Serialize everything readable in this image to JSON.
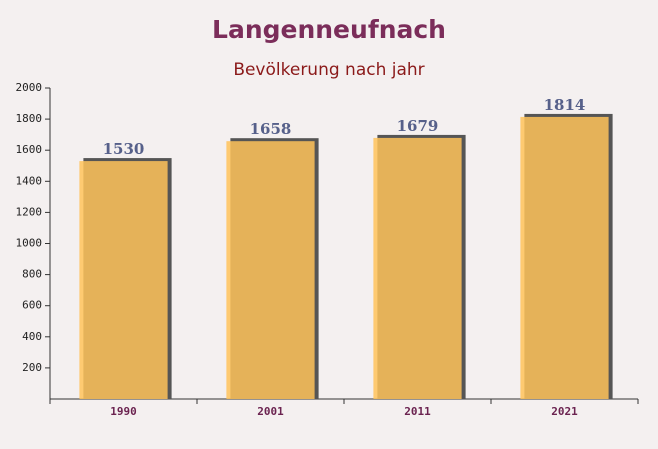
{
  "chart_data": {
    "type": "bar",
    "title": "Langenneufnach",
    "subtitle": "Bevölkerung nach jahr",
    "categories": [
      "1990",
      "2001",
      "2011",
      "2021"
    ],
    "values": [
      1530,
      1658,
      1679,
      1814
    ],
    "color": "#ffc35a",
    "ylim": [
      0,
      2000
    ],
    "yticks": [
      200,
      400,
      600,
      800,
      1000,
      1200,
      1400,
      1600,
      1800,
      2000
    ]
  }
}
